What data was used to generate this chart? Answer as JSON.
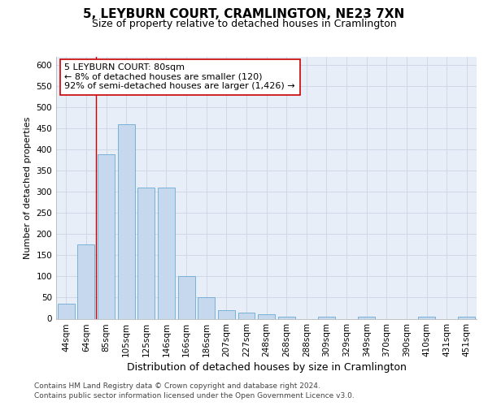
{
  "title": "5, LEYBURN COURT, CRAMLINGTON, NE23 7XN",
  "subtitle": "Size of property relative to detached houses in Cramlington",
  "xlabel": "Distribution of detached houses by size in Cramlington",
  "ylabel": "Number of detached properties",
  "categories": [
    "44sqm",
    "64sqm",
    "85sqm",
    "105sqm",
    "125sqm",
    "146sqm",
    "166sqm",
    "186sqm",
    "207sqm",
    "227sqm",
    "248sqm",
    "268sqm",
    "288sqm",
    "309sqm",
    "329sqm",
    "349sqm",
    "370sqm",
    "390sqm",
    "410sqm",
    "431sqm",
    "451sqm"
  ],
  "values": [
    35,
    175,
    390,
    460,
    310,
    310,
    100,
    50,
    20,
    15,
    10,
    5,
    0,
    5,
    0,
    5,
    0,
    0,
    5,
    0,
    5
  ],
  "bar_color": "#c5d8ed",
  "bar_edge_color": "#6aaad4",
  "vline_x": 1.5,
  "vline_color": "#cc0000",
  "annotation_text": "5 LEYBURN COURT: 80sqm\n← 8% of detached houses are smaller (120)\n92% of semi-detached houses are larger (1,426) →",
  "annotation_box_color": "#ffffff",
  "annotation_box_edge_color": "#cc0000",
  "ylim": [
    0,
    620
  ],
  "yticks": [
    0,
    50,
    100,
    150,
    200,
    250,
    300,
    350,
    400,
    450,
    500,
    550,
    600
  ],
  "grid_color": "#d0d8e8",
  "background_color": "#e8eef8",
  "footer_line1": "Contains HM Land Registry data © Crown copyright and database right 2024.",
  "footer_line2": "Contains public sector information licensed under the Open Government Licence v3.0.",
  "title_fontsize": 11,
  "subtitle_fontsize": 9,
  "xlabel_fontsize": 9,
  "ylabel_fontsize": 8,
  "tick_fontsize": 7.5,
  "annotation_fontsize": 8,
  "footer_fontsize": 6.5
}
